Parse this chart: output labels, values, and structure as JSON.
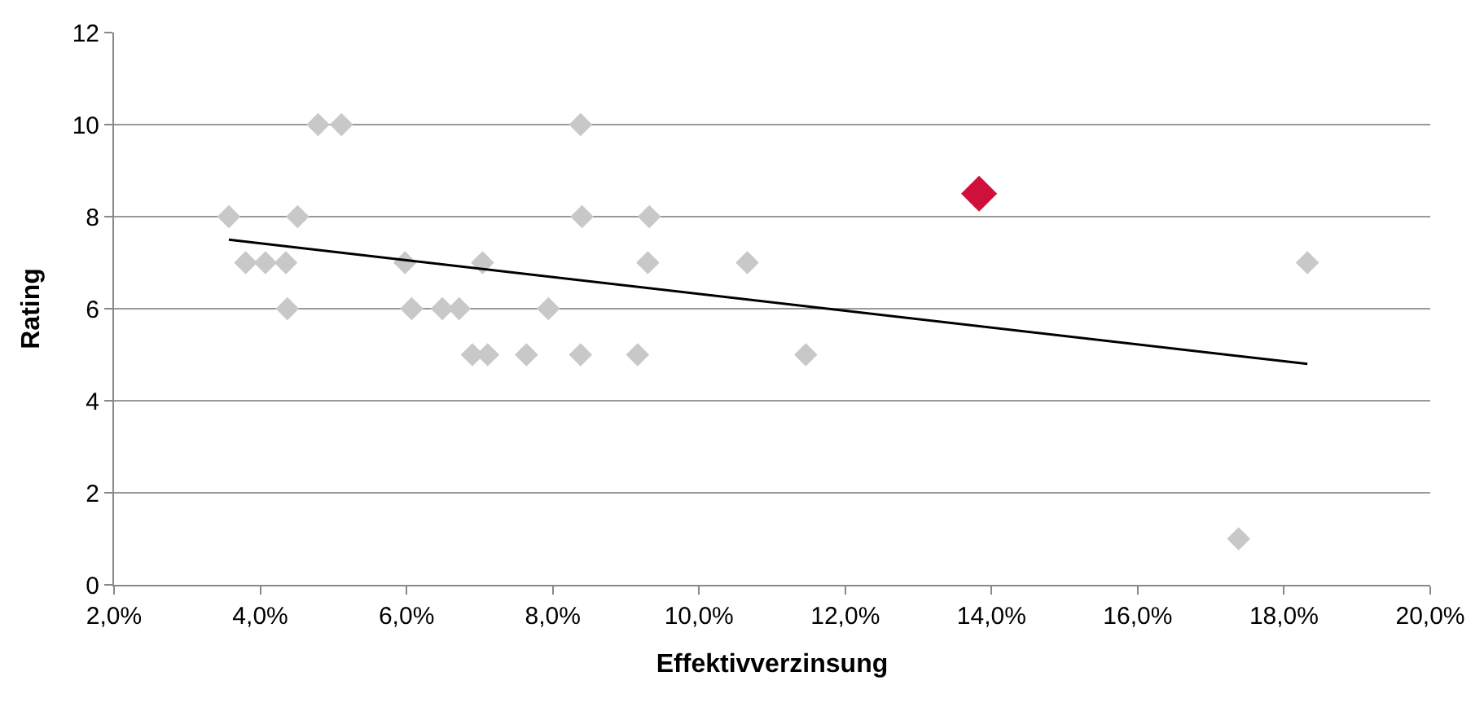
{
  "chart_data": {
    "type": "scatter",
    "xlabel": "Effektivverzinsung",
    "ylabel": "Rating",
    "marker": "diamond",
    "grid": "y",
    "xlim": [
      2,
      20
    ],
    "xticks": [
      {
        "value": 2,
        "label": "2,0%"
      },
      {
        "value": 4,
        "label": "4,0%"
      },
      {
        "value": 6,
        "label": "6,0%"
      },
      {
        "value": 8,
        "label": "8,0%"
      },
      {
        "value": 10,
        "label": "10,0%"
      },
      {
        "value": 12,
        "label": "12,0%"
      },
      {
        "value": 14,
        "label": "14,0%"
      },
      {
        "value": 16,
        "label": "16,0%"
      },
      {
        "value": 18,
        "label": "18,0%"
      },
      {
        "value": 20,
        "label": "20,0%"
      }
    ],
    "ylim": [
      0,
      12
    ],
    "yticks": [
      0,
      2,
      4,
      6,
      8,
      10,
      12
    ],
    "series": [
      {
        "color": "#c8c8c8",
        "x": [
          3.57,
          3.8,
          4.07,
          4.35,
          4.37,
          4.51,
          4.79,
          5.11,
          5.98,
          6.07,
          6.49,
          6.72,
          6.9,
          7.04,
          7.11,
          7.64,
          7.94,
          8.38,
          8.4,
          8.38,
          9.16,
          9.3,
          9.32,
          10.66,
          11.46,
          17.38,
          18.32
        ],
        "values": [
          8,
          7,
          7,
          7,
          6,
          8,
          10,
          10,
          7,
          6,
          6,
          6,
          5,
          7,
          5,
          5,
          6,
          10,
          8,
          5,
          5,
          7,
          8,
          7,
          5,
          1,
          7
        ]
      },
      {
        "color": "#d0103a",
        "x": [
          13.83
        ],
        "values": [
          8.5
        ]
      },
      {
        "type": "line",
        "color": "#000000",
        "marker": "none",
        "x": [
          3.57,
          18.32
        ],
        "values": [
          7.5,
          4.8
        ]
      }
    ]
  }
}
